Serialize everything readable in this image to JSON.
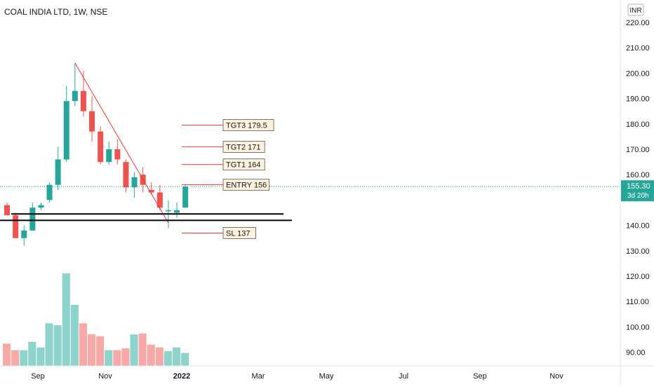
{
  "header": {
    "title": "COAL INDIA LTD, 1W, NSE"
  },
  "currency_label": "INR",
  "price_tag": {
    "value": "155.30",
    "countdown": "3d 20h"
  },
  "colors": {
    "up": "#26a69a",
    "down": "#ef5350",
    "vol_up": "#8fd3cd",
    "vol_down": "#f7a9a7",
    "trendline": "#e53935",
    "level_line": "#e53935",
    "label_bg": "#fff2dc",
    "grid_text": "#131722",
    "price_line": "#26a69a"
  },
  "annotations": [
    {
      "label": "TGT3 179.5",
      "price": 179.5
    },
    {
      "label": "TGT2 171",
      "price": 171
    },
    {
      "label": "TGT1 164",
      "price": 164
    },
    {
      "label": "ENTRY 156",
      "price": 156
    },
    {
      "label": "SL 137",
      "price": 137
    }
  ],
  "chart_data": {
    "type": "candlestick",
    "title": "COAL INDIA LTD, 1W, NSE",
    "ylim": [
      85,
      225
    ],
    "y_ticks": [
      "220.00",
      "210.00",
      "200.00",
      "190.00",
      "180.00",
      "170.00",
      "160.00",
      "140.00",
      "130.00",
      "120.00",
      "110.00",
      "100.00",
      "90.00"
    ],
    "x_ticks": [
      "Sep",
      "Nov",
      "2022",
      "Mar",
      "May",
      "Jul",
      "Sep",
      "Nov"
    ],
    "candles": [
      {
        "o": 148,
        "h": 149,
        "l": 144,
        "c": 144
      },
      {
        "o": 144,
        "h": 145,
        "l": 135,
        "c": 135
      },
      {
        "o": 135,
        "h": 140,
        "l": 132,
        "c": 138
      },
      {
        "o": 138,
        "h": 149,
        "l": 138,
        "c": 147
      },
      {
        "o": 147,
        "h": 149,
        "l": 146,
        "c": 148
      },
      {
        "o": 150,
        "h": 157,
        "l": 149,
        "c": 156
      },
      {
        "o": 156,
        "h": 171,
        "l": 154,
        "c": 166
      },
      {
        "o": 166,
        "h": 195,
        "l": 165,
        "c": 189
      },
      {
        "o": 189,
        "h": 204,
        "l": 187,
        "c": 193
      },
      {
        "o": 193,
        "h": 201,
        "l": 183,
        "c": 185
      },
      {
        "o": 185,
        "h": 191,
        "l": 173,
        "c": 177
      },
      {
        "o": 177,
        "h": 179,
        "l": 164,
        "c": 165
      },
      {
        "o": 165,
        "h": 173,
        "l": 164,
        "c": 170
      },
      {
        "o": 170,
        "h": 174,
        "l": 164,
        "c": 166
      },
      {
        "o": 165,
        "h": 166,
        "l": 153,
        "c": 155
      },
      {
        "o": 155,
        "h": 161,
        "l": 151,
        "c": 159
      },
      {
        "o": 160,
        "h": 163,
        "l": 153,
        "c": 156
      },
      {
        "o": 154,
        "h": 157,
        "l": 152,
        "c": 153
      },
      {
        "o": 153,
        "h": 156,
        "l": 146,
        "c": 147
      },
      {
        "o": 146,
        "h": 150,
        "l": 139,
        "c": 146
      },
      {
        "o": 145,
        "h": 149,
        "l": 143,
        "c": 146
      },
      {
        "o": 147,
        "h": 156,
        "l": 147,
        "c": 155.3
      }
    ],
    "volume_scale": 100,
    "volumes": [
      24,
      17,
      17,
      26,
      20,
      46,
      44,
      100,
      66,
      46,
      34,
      32,
      17,
      17,
      19,
      34,
      35,
      23,
      20,
      16,
      20,
      14
    ],
    "trendline": {
      "from_candle": 8,
      "from_price": 204,
      "to_candle": 19,
      "to_price": 141
    },
    "support_lines": [
      {
        "price": 144.5
      },
      {
        "price": 142
      }
    ]
  }
}
